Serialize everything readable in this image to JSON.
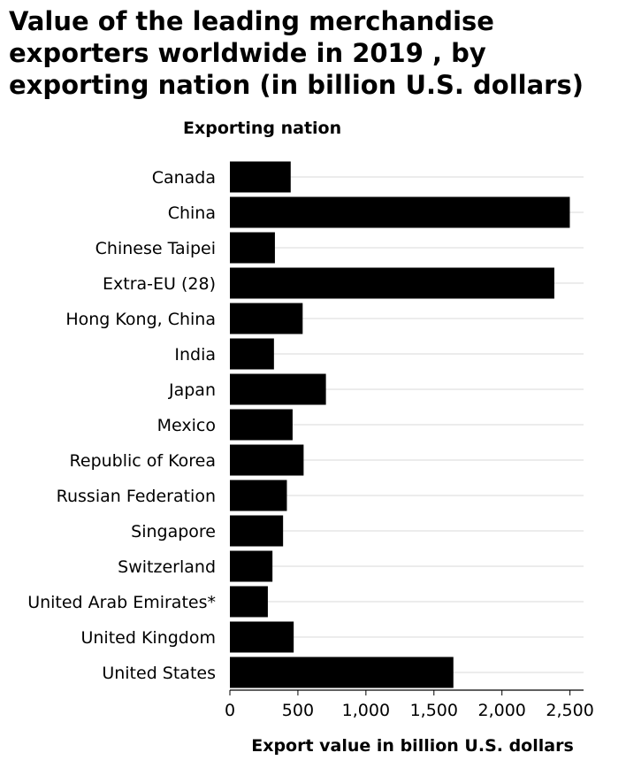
{
  "chart_data": {
    "type": "bar",
    "orientation": "horizontal",
    "title": "Value of the leading merchandise exporters worldwide in 2019 , by exporting nation (in billion U.S. dollars)",
    "ylabel": "Exporting nation",
    "xlabel": "Export value in billion U.S. dollars",
    "categories": [
      "Canada",
      "China",
      "Chinese Taipei",
      "Extra-EU (28)",
      "Hong Kong, China",
      "India",
      "Japan",
      "Mexico",
      "Republic of Korea",
      "Russian Federation",
      "Singapore",
      "Switzerland",
      "United Arab Emirates*",
      "United Kingdom",
      "United States"
    ],
    "values": [
      447,
      2499,
      331,
      2385,
      535,
      324,
      706,
      461,
      542,
      419,
      391,
      313,
      279,
      469,
      1643
    ],
    "xlim": [
      0,
      2600
    ],
    "xticks": [
      0,
      500,
      1000,
      1500,
      2000,
      2500
    ],
    "xtick_labels": [
      "0",
      "500",
      "1,000",
      "1,500",
      "2,000",
      "2,500"
    ],
    "grid": true,
    "bar_color": "#000000",
    "grid_color": "#d9d9d9"
  }
}
